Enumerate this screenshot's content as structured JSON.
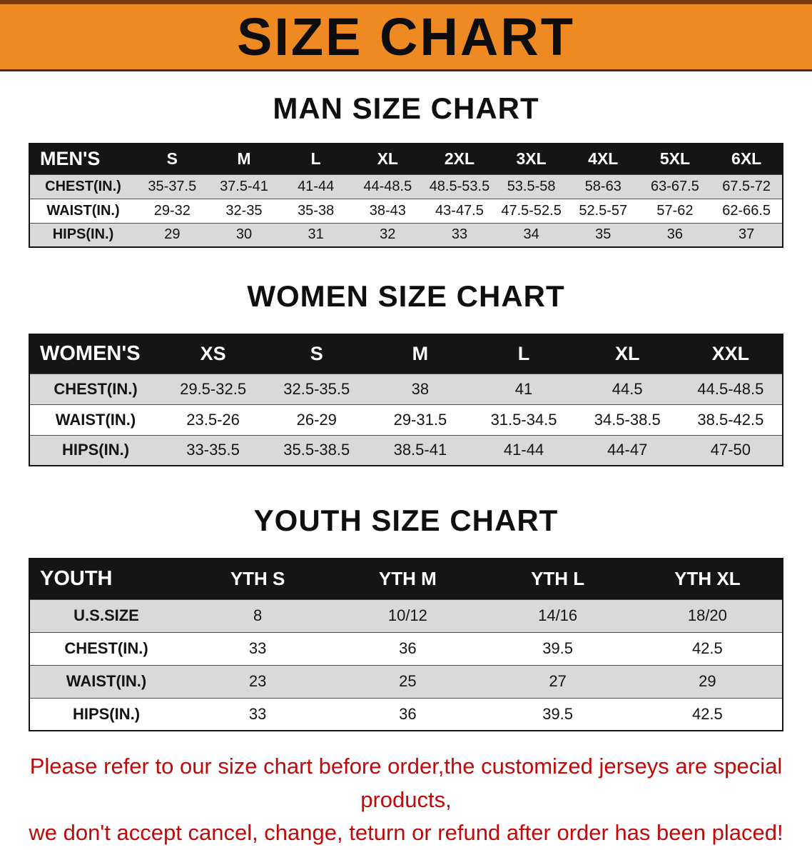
{
  "banner": {
    "title": "SIZE CHART",
    "bg_color": "#ef8a23"
  },
  "sections": [
    {
      "id": "men",
      "heading": "MAN SIZE CHART",
      "table": {
        "header": [
          "MEN'S",
          "S",
          "M",
          "L",
          "XL",
          "2XL",
          "3XL",
          "4XL",
          "5XL",
          "6XL"
        ],
        "rows": [
          {
            "label": "CHEST(IN.)",
            "values": [
              "35-37.5",
              "37.5-41",
              "41-44",
              "44-48.5",
              "48.5-53.5",
              "53.5-58",
              "58-63",
              "63-67.5",
              "67.5-72"
            ]
          },
          {
            "label": "WAIST(IN.)",
            "values": [
              "29-32",
              "32-35",
              "35-38",
              "38-43",
              "43-47.5",
              "47.5-52.5",
              "52.5-57",
              "57-62",
              "62-66.5"
            ]
          },
          {
            "label": "HIPS(IN.)",
            "values": [
              "29",
              "30",
              "31",
              "32",
              "33",
              "34",
              "35",
              "36",
              "37"
            ]
          }
        ]
      }
    },
    {
      "id": "women",
      "heading": "WOMEN SIZE CHART",
      "table": {
        "header": [
          "WOMEN'S",
          "XS",
          "S",
          "M",
          "L",
          "XL",
          "XXL"
        ],
        "rows": [
          {
            "label": "CHEST(IN.)",
            "values": [
              "29.5-32.5",
              "32.5-35.5",
              "38",
              "41",
              "44.5",
              "44.5-48.5"
            ]
          },
          {
            "label": "WAIST(IN.)",
            "values": [
              "23.5-26",
              "26-29",
              "29-31.5",
              "31.5-34.5",
              "34.5-38.5",
              "38.5-42.5"
            ]
          },
          {
            "label": "HIPS(IN.)",
            "values": [
              "33-35.5",
              "35.5-38.5",
              "38.5-41",
              "41-44",
              "44-47",
              "47-50"
            ]
          }
        ]
      }
    },
    {
      "id": "youth",
      "heading": "YOUTH SIZE CHART",
      "table": {
        "header": [
          "YOUTH",
          "YTH S",
          "YTH M",
          "YTH L",
          "YTH XL"
        ],
        "rows": [
          {
            "label": "U.S.SIZE",
            "values": [
              "8",
              "10/12",
              "14/16",
              "18/20"
            ]
          },
          {
            "label": "CHEST(IN.)",
            "values": [
              "33",
              "36",
              "39.5",
              "42.5"
            ]
          },
          {
            "label": "WAIST(IN.)",
            "values": [
              "23",
              "25",
              "27",
              "29"
            ]
          },
          {
            "label": "HIPS(IN.)",
            "values": [
              "33",
              "36",
              "39.5",
              "42.5"
            ]
          }
        ]
      }
    }
  ],
  "footer": {
    "line1": "Please refer to our size chart before order,the customized jerseys are special products,",
    "line2": "we don't accept cancel, change, teturn or refund after order has been placed!",
    "text_color": "#c00a0a"
  }
}
